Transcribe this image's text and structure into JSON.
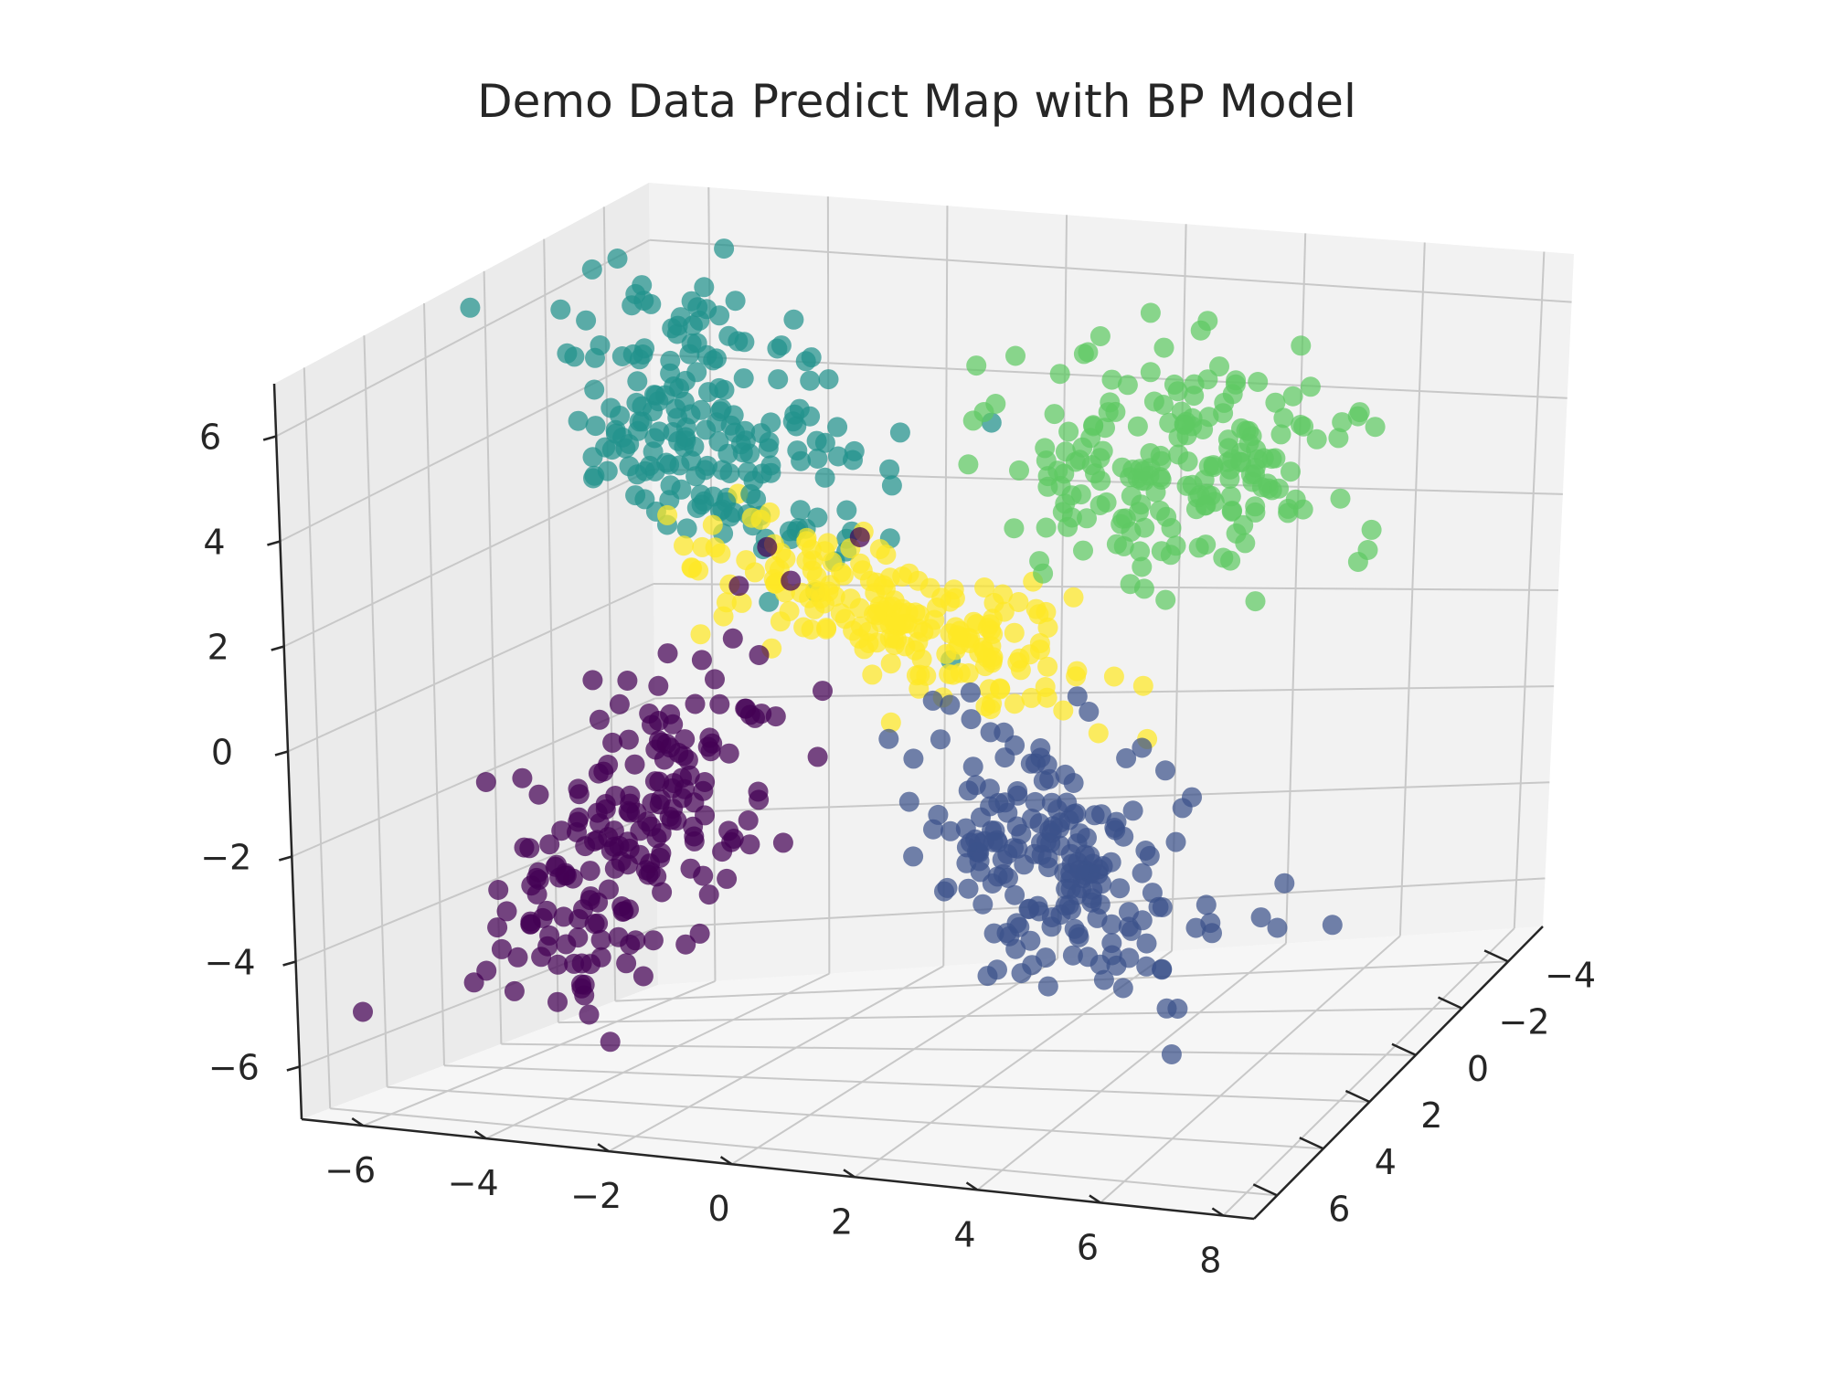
{
  "chart_data": {
    "type": "scatter",
    "projection": "3d",
    "title": "Demo Data Predict Map with BP Model",
    "xlabel": "",
    "ylabel": "",
    "zlabel": "",
    "xlim": [
      -7,
      8.5
    ],
    "ylim": [
      -5.5,
      7
    ],
    "zlim": [
      -7,
      7
    ],
    "x_ticks": [
      "−6",
      "−4",
      "−2",
      "0",
      "2",
      "4",
      "6",
      "8"
    ],
    "y_ticks": [
      "−4",
      "−2",
      "0",
      "2",
      "4",
      "6"
    ],
    "z_ticks": [
      "−6",
      "−4",
      "−2",
      "0",
      "2",
      "4",
      "6"
    ],
    "grid": true,
    "legend": "none",
    "colors": {
      "purple": "#440154",
      "blue": "#3b528b",
      "teal": "#21918c",
      "green": "#5ec962",
      "yellow": "#fde725"
    },
    "series": [
      {
        "color_key": "purple",
        "count": 200,
        "center": [
          -3.5,
          2.5,
          -2.5
        ],
        "spread": [
          0.9,
          0.6,
          0.9
        ],
        "trend": [
          0.55,
          0.0,
          1.0
        ]
      },
      {
        "color_key": "blue",
        "count": 200,
        "center": [
          3.5,
          2.5,
          -2.5
        ],
        "spread": [
          0.9,
          0.6,
          0.9
        ],
        "trend": [
          0.55,
          0.0,
          -0.55
        ]
      },
      {
        "color_key": "teal",
        "count": 200,
        "center": [
          -4.0,
          -1.5,
          3.8
        ],
        "spread": [
          1.0,
          0.8,
          0.9
        ],
        "trend": [
          0.55,
          0.0,
          -0.5
        ]
      },
      {
        "color_key": "green",
        "count": 200,
        "center": [
          3.5,
          -2.0,
          3.5
        ],
        "spread": [
          1.4,
          1.0,
          1.0
        ],
        "trend": [
          0.0,
          0.0,
          0.0
        ]
      },
      {
        "color_key": "yellow",
        "count": 200,
        "center": [
          0.0,
          0.0,
          1.0
        ],
        "spread": [
          1.2,
          0.35,
          0.35
        ],
        "trend": [
          0.7,
          0.0,
          -0.45
        ]
      }
    ]
  }
}
